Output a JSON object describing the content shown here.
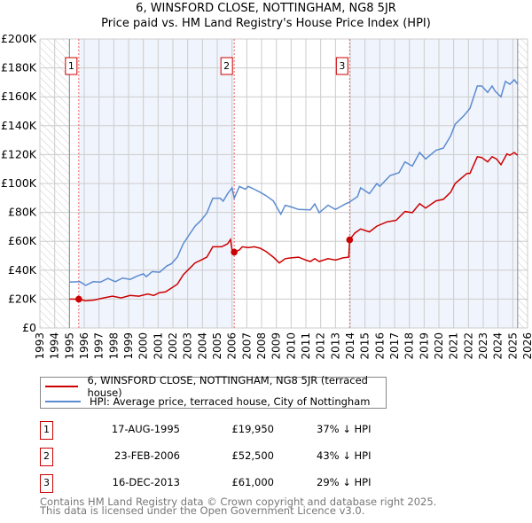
{
  "chart_data": {
    "type": "line",
    "title": "6, WINSFORD CLOSE, NOTTINGHAM, NG8 5JR",
    "subtitle": "Price paid vs. HM Land Registry's House Price Index (HPI)",
    "xlim": [
      1993,
      2026
    ],
    "ylim": [
      0,
      200000
    ],
    "y_ticks": [
      0,
      20000,
      40000,
      60000,
      80000,
      100000,
      120000,
      140000,
      160000,
      180000,
      200000
    ],
    "y_tick_labels": [
      "£0",
      "£20K",
      "£40K",
      "£60K",
      "£80K",
      "£100K",
      "£120K",
      "£140K",
      "£160K",
      "£180K",
      "£200K"
    ],
    "x_ticks": [
      1993,
      1994,
      1995,
      1996,
      1997,
      1998,
      1999,
      2000,
      2001,
      2002,
      2003,
      2004,
      2005,
      2006,
      2007,
      2008,
      2009,
      2010,
      2011,
      2012,
      2013,
      2014,
      2015,
      2016,
      2017,
      2018,
      2019,
      2020,
      2021,
      2022,
      2023,
      2024,
      2025,
      2026
    ],
    "x_tick_labels": [
      "1993",
      "1994",
      "1995",
      "1996",
      "1997",
      "1998",
      "1999",
      "2000",
      "2001",
      "2002",
      "2003",
      "2004",
      "2005",
      "2006",
      "2007",
      "2008",
      "2009",
      "2010",
      "2011",
      "2012",
      "2013",
      "2014",
      "2015",
      "2016",
      "2017",
      "2018",
      "2019",
      "2020",
      "2021",
      "2022",
      "2023",
      "2024",
      "2025",
      "2026"
    ],
    "grid": true,
    "hatched_ranges": [
      [
        1993,
        1995.0
      ],
      [
        2025.33,
        2026
      ]
    ],
    "shaded_ranges": [
      [
        1995.63,
        2006.15
      ],
      [
        2013.96,
        2025.33
      ]
    ],
    "series": [
      {
        "name": "6, WINSFORD CLOSE, NOTTINGHAM, NG8 5JR (terraced house)",
        "color": "#cc0000",
        "x": [
          1995.0,
          1995.63,
          1996.1,
          1996.7,
          1997.3,
          1997.9,
          1998.5,
          1999.1,
          1999.7,
          2000.3,
          2000.7,
          2001.1,
          2001.5,
          2001.9,
          2002.3,
          2002.7,
          2003.1,
          2003.5,
          2003.9,
          2004.3,
          2004.7,
          2005.3,
          2005.7,
          2005.9,
          2006.0,
          2006.15,
          2006.5,
          2006.7,
          2007.1,
          2007.5,
          2007.9,
          2008.3,
          2008.8,
          2009.2,
          2009.6,
          2010.0,
          2010.5,
          2011.0,
          2011.3,
          2011.6,
          2011.9,
          2012.5,
          2013.0,
          2013.5,
          2013.9,
          2013.96,
          2014.3,
          2014.7,
          2015.3,
          2015.8,
          2016.5,
          2017.1,
          2017.7,
          2018.2,
          2018.7,
          2019.1,
          2019.8,
          2020.3,
          2020.8,
          2021.1,
          2021.9,
          2022.1,
          2022.6,
          2022.9,
          2023.3,
          2023.6,
          2023.9,
          2024.2,
          2024.6,
          2024.8,
          2025.1,
          2025.33
        ],
        "values": [
          20000,
          19950,
          18800,
          19400,
          20800,
          22000,
          20800,
          22500,
          22000,
          23500,
          22500,
          24500,
          25000,
          27600,
          30300,
          36800,
          40900,
          45000,
          47000,
          49000,
          56200,
          56200,
          58300,
          61300,
          54000,
          52500,
          54000,
          56200,
          55600,
          56200,
          55200,
          53000,
          49000,
          45000,
          48000,
          48500,
          49000,
          47000,
          46000,
          48000,
          46000,
          48000,
          47000,
          48500,
          49000,
          61000,
          65600,
          68500,
          66500,
          70500,
          73500,
          74500,
          80600,
          79800,
          86000,
          83000,
          88000,
          89000,
          94000,
          100000,
          107000,
          107000,
          118500,
          118000,
          115000,
          118500,
          117000,
          113000,
          120500,
          119500,
          121500,
          119500
        ]
      },
      {
        "name": "HPI: Average price, terraced house, City of Nottingham",
        "color": "#5b8bd0",
        "x": [
          1995.0,
          1995.7,
          1996.1,
          1996.6,
          1997.1,
          1997.6,
          1998.1,
          1998.6,
          1999.1,
          1999.6,
          2000.0,
          2000.2,
          2000.6,
          2001.1,
          2001.6,
          2001.9,
          2002.3,
          2002.7,
          2003.1,
          2003.5,
          2003.9,
          2004.3,
          2004.7,
          2005.2,
          2005.4,
          2005.7,
          2006.0,
          2006.15,
          2006.5,
          2006.9,
          2007.1,
          2007.5,
          2007.9,
          2008.3,
          2008.8,
          2009.3,
          2009.6,
          2010.0,
          2010.5,
          2011.3,
          2011.6,
          2011.9,
          2012.5,
          2013.0,
          2013.7,
          2013.96,
          2014.5,
          2014.7,
          2015.3,
          2015.8,
          2016.0,
          2016.7,
          2017.3,
          2017.7,
          2018.2,
          2018.7,
          2019.1,
          2019.8,
          2020.3,
          2020.8,
          2021.1,
          2021.7,
          2022.1,
          2022.6,
          2022.9,
          2023.3,
          2023.6,
          2023.8,
          2024.2,
          2024.5,
          2024.8,
          2025.1,
          2025.33
        ],
        "values": [
          31700,
          32000,
          29500,
          32000,
          31700,
          34300,
          32000,
          34600,
          33600,
          36000,
          37500,
          35500,
          39000,
          38600,
          43000,
          44400,
          49100,
          58300,
          64400,
          70500,
          74500,
          79600,
          89800,
          89800,
          87800,
          92900,
          97000,
          89800,
          98000,
          96000,
          98000,
          96000,
          94000,
          91600,
          88000,
          78700,
          84900,
          83800,
          82000,
          81800,
          85900,
          79800,
          85000,
          82000,
          86000,
          87200,
          91000,
          97000,
          93000,
          100000,
          98000,
          105500,
          107500,
          115000,
          112000,
          121500,
          117000,
          123000,
          124500,
          133000,
          141000,
          147000,
          152000,
          167500,
          167500,
          163000,
          167500,
          164000,
          160000,
          170700,
          168700,
          171800,
          168700
        ]
      }
    ],
    "sales": [
      {
        "label": "1",
        "x": 1995.63,
        "value": 19950
      },
      {
        "label": "2",
        "x": 2006.15,
        "value": 52500
      },
      {
        "label": "3",
        "x": 2013.96,
        "value": 61000
      }
    ],
    "legend_placement": "below"
  },
  "header": {
    "title": "6, WINSFORD CLOSE, NOTTINGHAM, NG8 5JR",
    "subtitle": "Price paid vs. HM Land Registry's House Price Index (HPI)"
  },
  "legend": [
    {
      "label": "6, WINSFORD CLOSE, NOTTINGHAM, NG8 5JR (terraced house)",
      "color": "#cc0000"
    },
    {
      "label": "HPI: Average price, terraced house, City of Nottingham",
      "color": "#5b8bd0"
    }
  ],
  "transactions": [
    {
      "num": "1",
      "date": "17-AUG-1995",
      "price": "£19,950",
      "pct": "37% ↓ HPI"
    },
    {
      "num": "2",
      "date": "23-FEB-2006",
      "price": "£52,500",
      "pct": "43% ↓ HPI"
    },
    {
      "num": "3",
      "date": "16-DEC-2013",
      "price": "£61,000",
      "pct": "29% ↓ HPI"
    }
  ],
  "footer": {
    "line1": "Contains HM Land Registry data © Crown copyright and database right 2025.",
    "line2": "This data is licensed under the Open Government Licence v3.0."
  }
}
